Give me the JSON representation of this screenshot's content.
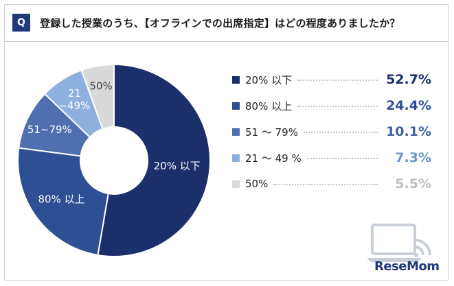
{
  "question": {
    "badge": "Q",
    "text": "登録した授業のうち、【オフラインでの出席指定】はどの程度ありましたか？"
  },
  "chart_data": {
    "type": "pie",
    "categories": [
      "20% 以下",
      "80% 以上",
      "51 〜 79%",
      "21 〜 49 %",
      "50%"
    ],
    "values": [
      52.7,
      24.4,
      10.1,
      7.3,
      5.5
    ],
    "value_labels": [
      "52.7%",
      "24.4%",
      "10.1%",
      "7.3%",
      "5.5%"
    ],
    "slice_labels": [
      "20% 以下",
      "80% 以上",
      "51~79%",
      "21\n~49%",
      "50%"
    ],
    "colors": [
      "#1b2f6b",
      "#2f4f95",
      "#4f6fb0",
      "#8eb0de",
      "#d9d9d9"
    ],
    "value_colors": [
      "#1b2f6b",
      "#2f4f95",
      "#3f5fa6",
      "#6d95d0",
      "#bdbdbd"
    ],
    "slice_label_colors": [
      "#ffffff",
      "#ffffff",
      "#ffffff",
      "#ffffff",
      "#444444"
    ],
    "donut": true,
    "start_angle_deg": 0,
    "direction": "clockwise",
    "legend_position": "right"
  },
  "logo": {
    "brand": "ReseMom",
    "icon": "laptop-wifi-icon"
  }
}
